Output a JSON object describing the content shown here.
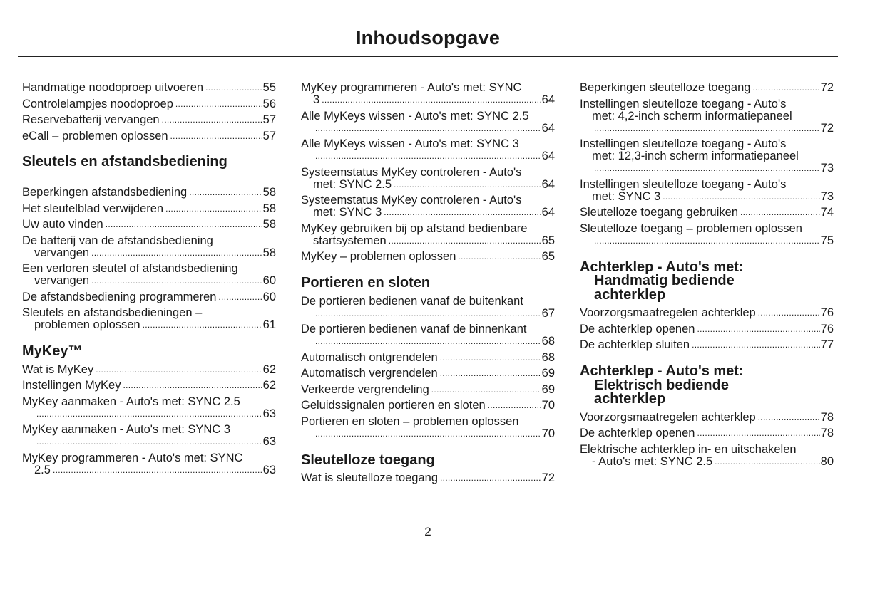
{
  "title": "Inhoudsopgave",
  "page_number": "2",
  "columns": [
    [
      {
        "lines": [
          "Handmatige noodoproep uitvoeren"
        ],
        "page": "55"
      },
      {
        "lines": [
          "Controlelampjes noodoproep"
        ],
        "page": "56"
      },
      {
        "lines": [
          "Reservebatterij vervangen"
        ],
        "page": "57"
      },
      {
        "lines": [
          "eCall – problemen oplossen"
        ],
        "page": "57"
      },
      {
        "heading": [
          "Sleutels en afstandsbediening"
        ],
        "gap": true
      },
      {
        "lines": [
          "Beperkingen afstandsbediening"
        ],
        "page": "58"
      },
      {
        "lines": [
          "Het sleutelblad verwijderen"
        ],
        "page": "58"
      },
      {
        "lines": [
          "Uw auto vinden"
        ],
        "page": "58"
      },
      {
        "lines": [
          "De batterij van de afstandsbediening",
          "vervangen"
        ],
        "page": "58"
      },
      {
        "lines": [
          "Een verloren sleutel of afstandsbediening",
          "vervangen"
        ],
        "page": "60"
      },
      {
        "lines": [
          "De afstandsbediening programmeren"
        ],
        "page": "60"
      },
      {
        "lines": [
          "Sleutels en afstandsbedieningen –",
          "problemen oplossen"
        ],
        "page": "61"
      },
      {
        "heading": [
          "MyKey™"
        ]
      },
      {
        "lines": [
          "Wat is MyKey"
        ],
        "page": "62"
      },
      {
        "lines": [
          "Instellingen MyKey"
        ],
        "page": "62"
      },
      {
        "lines": [
          "MyKey aanmaken - Auto's met: SYNC 2.5",
          ""
        ],
        "page": "63"
      },
      {
        "lines": [
          "MyKey aanmaken - Auto's met: SYNC 3",
          ""
        ],
        "page": "63"
      },
      {
        "lines": [
          "MyKey programmeren - Auto's met: SYNC",
          "2.5"
        ],
        "page": "63"
      }
    ],
    [
      {
        "lines": [
          "MyKey programmeren - Auto's met: SYNC",
          "3"
        ],
        "page": "64"
      },
      {
        "lines": [
          "Alle MyKeys wissen - Auto's met: SYNC 2.5",
          ""
        ],
        "page": "64"
      },
      {
        "lines": [
          "Alle MyKeys wissen - Auto's met: SYNC 3",
          ""
        ],
        "page": "64"
      },
      {
        "lines": [
          "Systeemstatus MyKey controleren - Auto's",
          "met: SYNC 2.5"
        ],
        "page": "64"
      },
      {
        "lines": [
          "Systeemstatus MyKey controleren - Auto's",
          "met: SYNC 3"
        ],
        "page": "64"
      },
      {
        "lines": [
          "MyKey gebruiken bij op afstand bedienbare",
          "startsystemen"
        ],
        "page": "65"
      },
      {
        "lines": [
          "MyKey – problemen oplossen"
        ],
        "page": "65"
      },
      {
        "heading": [
          "Portieren en sloten"
        ]
      },
      {
        "lines": [
          "De portieren bedienen vanaf de buitenkant",
          ""
        ],
        "page": "67"
      },
      {
        "lines": [
          "De portieren bedienen vanaf de binnenkant",
          ""
        ],
        "page": "68"
      },
      {
        "lines": [
          "Automatisch ontgrendelen"
        ],
        "page": "68"
      },
      {
        "lines": [
          "Automatisch vergrendelen"
        ],
        "page": "69"
      },
      {
        "lines": [
          "Verkeerde vergrendeling"
        ],
        "page": "69"
      },
      {
        "lines": [
          "Geluidssignalen portieren en sloten"
        ],
        "page": "70"
      },
      {
        "lines": [
          "Portieren en sloten – problemen oplossen",
          ""
        ],
        "page": "70"
      },
      {
        "heading": [
          "Sleutelloze toegang"
        ]
      },
      {
        "lines": [
          "Wat is sleutelloze toegang"
        ],
        "page": "72"
      }
    ],
    [
      {
        "lines": [
          "Beperkingen sleutelloze toegang"
        ],
        "page": "72"
      },
      {
        "lines": [
          "Instellingen sleutelloze toegang - Auto's",
          "met: 4,2-inch scherm informatiepaneel",
          ""
        ],
        "page": "72"
      },
      {
        "lines": [
          "Instellingen sleutelloze toegang - Auto's",
          "met: 12,3-inch scherm informatiepaneel",
          ""
        ],
        "page": "73"
      },
      {
        "lines": [
          "Instellingen sleutelloze toegang - Auto's",
          "met: SYNC 3"
        ],
        "page": "73"
      },
      {
        "lines": [
          "Sleutelloze toegang gebruiken"
        ],
        "page": "74"
      },
      {
        "lines": [
          "Sleutelloze toegang – problemen oplossen",
          ""
        ],
        "page": "75"
      },
      {
        "heading": [
          "Achterklep - Auto's met:",
          "Handmatig bediende",
          "achterklep"
        ]
      },
      {
        "lines": [
          "Voorzorgsmaatregelen achterklep"
        ],
        "page": "76"
      },
      {
        "lines": [
          "De achterklep openen"
        ],
        "page": "76"
      },
      {
        "lines": [
          "De achterklep sluiten"
        ],
        "page": "77"
      },
      {
        "heading": [
          "Achterklep - Auto's met:",
          "Elektrisch bediende",
          "achterklep"
        ]
      },
      {
        "lines": [
          "Voorzorgsmaatregelen achterklep"
        ],
        "page": "78"
      },
      {
        "lines": [
          "De achterklep openen"
        ],
        "page": "78"
      },
      {
        "lines": [
          "Elektrische achterklep in- en uitschakelen",
          "- Auto's met: SYNC 2.5"
        ],
        "page": "80"
      }
    ]
  ]
}
